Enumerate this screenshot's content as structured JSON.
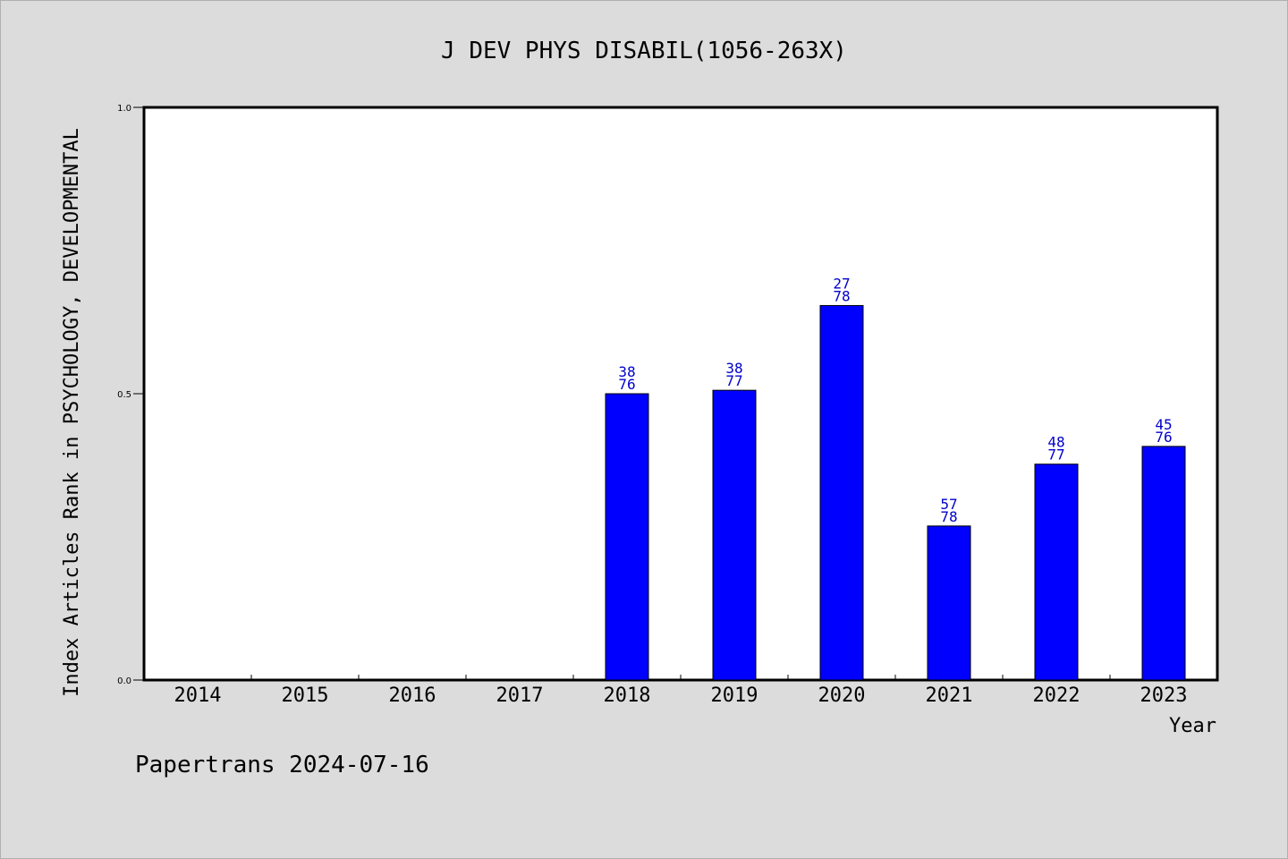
{
  "footer": "Papertrans 2024-07-16",
  "colors": {
    "background": "#dcdcdc",
    "plot_background": "#ffffff",
    "bar": "#0000ff",
    "label": "#0000cc",
    "text": "#000000"
  },
  "chart_data": {
    "type": "bar",
    "title": "J DEV PHYS DISABIL(1056-263X)",
    "xlabel": "Year",
    "ylabel": "Index Articles Rank in PSYCHOLOGY, DEVELOPMENTAL",
    "ylim": [
      0,
      1
    ],
    "yticks": [
      "0.0",
      "0.5",
      "1.0"
    ],
    "grid": false,
    "categories": [
      "2014",
      "2015",
      "2016",
      "2017",
      "2018",
      "2019",
      "2020",
      "2021",
      "2022",
      "2023"
    ],
    "values": [
      null,
      null,
      null,
      null,
      0.5,
      0.506,
      0.654,
      0.269,
      0.377,
      0.408
    ],
    "rank": [
      null,
      null,
      null,
      null,
      "38",
      "38",
      "27",
      "57",
      "48",
      "45"
    ],
    "total": [
      null,
      null,
      null,
      null,
      "76",
      "77",
      "78",
      "78",
      "77",
      "76"
    ]
  }
}
